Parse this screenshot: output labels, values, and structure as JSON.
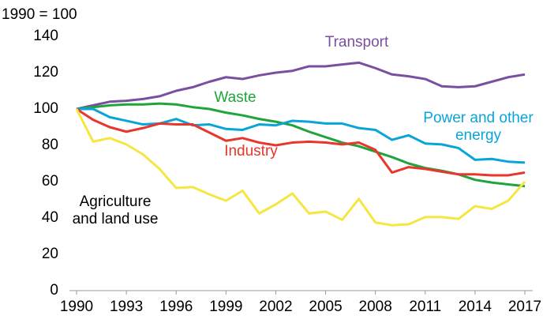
{
  "chart_data": {
    "type": "line",
    "ylabel": "1990 = 100",
    "x": [
      1990,
      1991,
      1992,
      1993,
      1994,
      1995,
      1996,
      1997,
      1998,
      1999,
      2000,
      2001,
      2002,
      2003,
      2004,
      2005,
      2006,
      2007,
      2008,
      2009,
      2010,
      2011,
      2012,
      2013,
      2014,
      2015,
      2016,
      2017
    ],
    "xlim": [
      1990,
      2017
    ],
    "xticks": [
      1990,
      1993,
      1996,
      1999,
      2002,
      2005,
      2008,
      2011,
      2014,
      2017
    ],
    "ylim": [
      0,
      140
    ],
    "yticks": [
      0,
      20,
      40,
      60,
      80,
      100,
      120,
      140
    ],
    "grid": false,
    "series": [
      {
        "name": "Transport",
        "color": "#7b4fa0",
        "values": [
          100,
          102,
          104,
          104.5,
          105.5,
          107,
          110,
          112,
          115,
          117.5,
          116.5,
          118.5,
          120,
          121,
          123.5,
          123.5,
          124.5,
          125.5,
          122.5,
          119,
          118,
          116.5,
          112.5,
          112,
          112.5,
          115,
          117.5,
          119
        ]
      },
      {
        "name": "Waste",
        "color": "#1fa53b",
        "values": [
          100,
          101,
          102,
          102.5,
          102.5,
          103,
          102.5,
          101,
          100,
          98,
          96.5,
          94.5,
          93,
          91,
          87.5,
          84.5,
          81.5,
          79.5,
          76.5,
          73.5,
          70,
          67.5,
          66,
          64,
          61,
          59.5,
          58.5,
          57.5
        ]
      },
      {
        "name": "Power and other energy",
        "color": "#0aa5d8",
        "values": [
          100,
          100,
          95.5,
          93.5,
          91.5,
          92,
          94.5,
          91,
          91.5,
          89,
          88.5,
          91.5,
          91,
          93.5,
          93,
          92,
          92,
          89.5,
          88.5,
          83,
          85.5,
          81,
          80.5,
          78.5,
          72,
          72.5,
          71,
          70.5
        ]
      },
      {
        "name": "Industry",
        "color": "#e8362c",
        "values": [
          100,
          94,
          90,
          87.5,
          89.5,
          92,
          91.5,
          91.5,
          87,
          82.5,
          84,
          81.5,
          80,
          81.5,
          82,
          81.5,
          80.5,
          81.5,
          77.5,
          65,
          68,
          67,
          65.5,
          64,
          64,
          63.5,
          63.5,
          65
        ]
      },
      {
        "name": "Agriculture and land use",
        "color": "#f5e642",
        "values": [
          100,
          82,
          84,
          80.5,
          75,
          67,
          56.5,
          57,
          53,
          49.5,
          55,
          42.5,
          47.5,
          53.5,
          42.5,
          43.5,
          39,
          50.5,
          37.5,
          36,
          36.5,
          40.5,
          40.5,
          39.5,
          46.5,
          45,
          49.5,
          60
        ]
      }
    ]
  }
}
